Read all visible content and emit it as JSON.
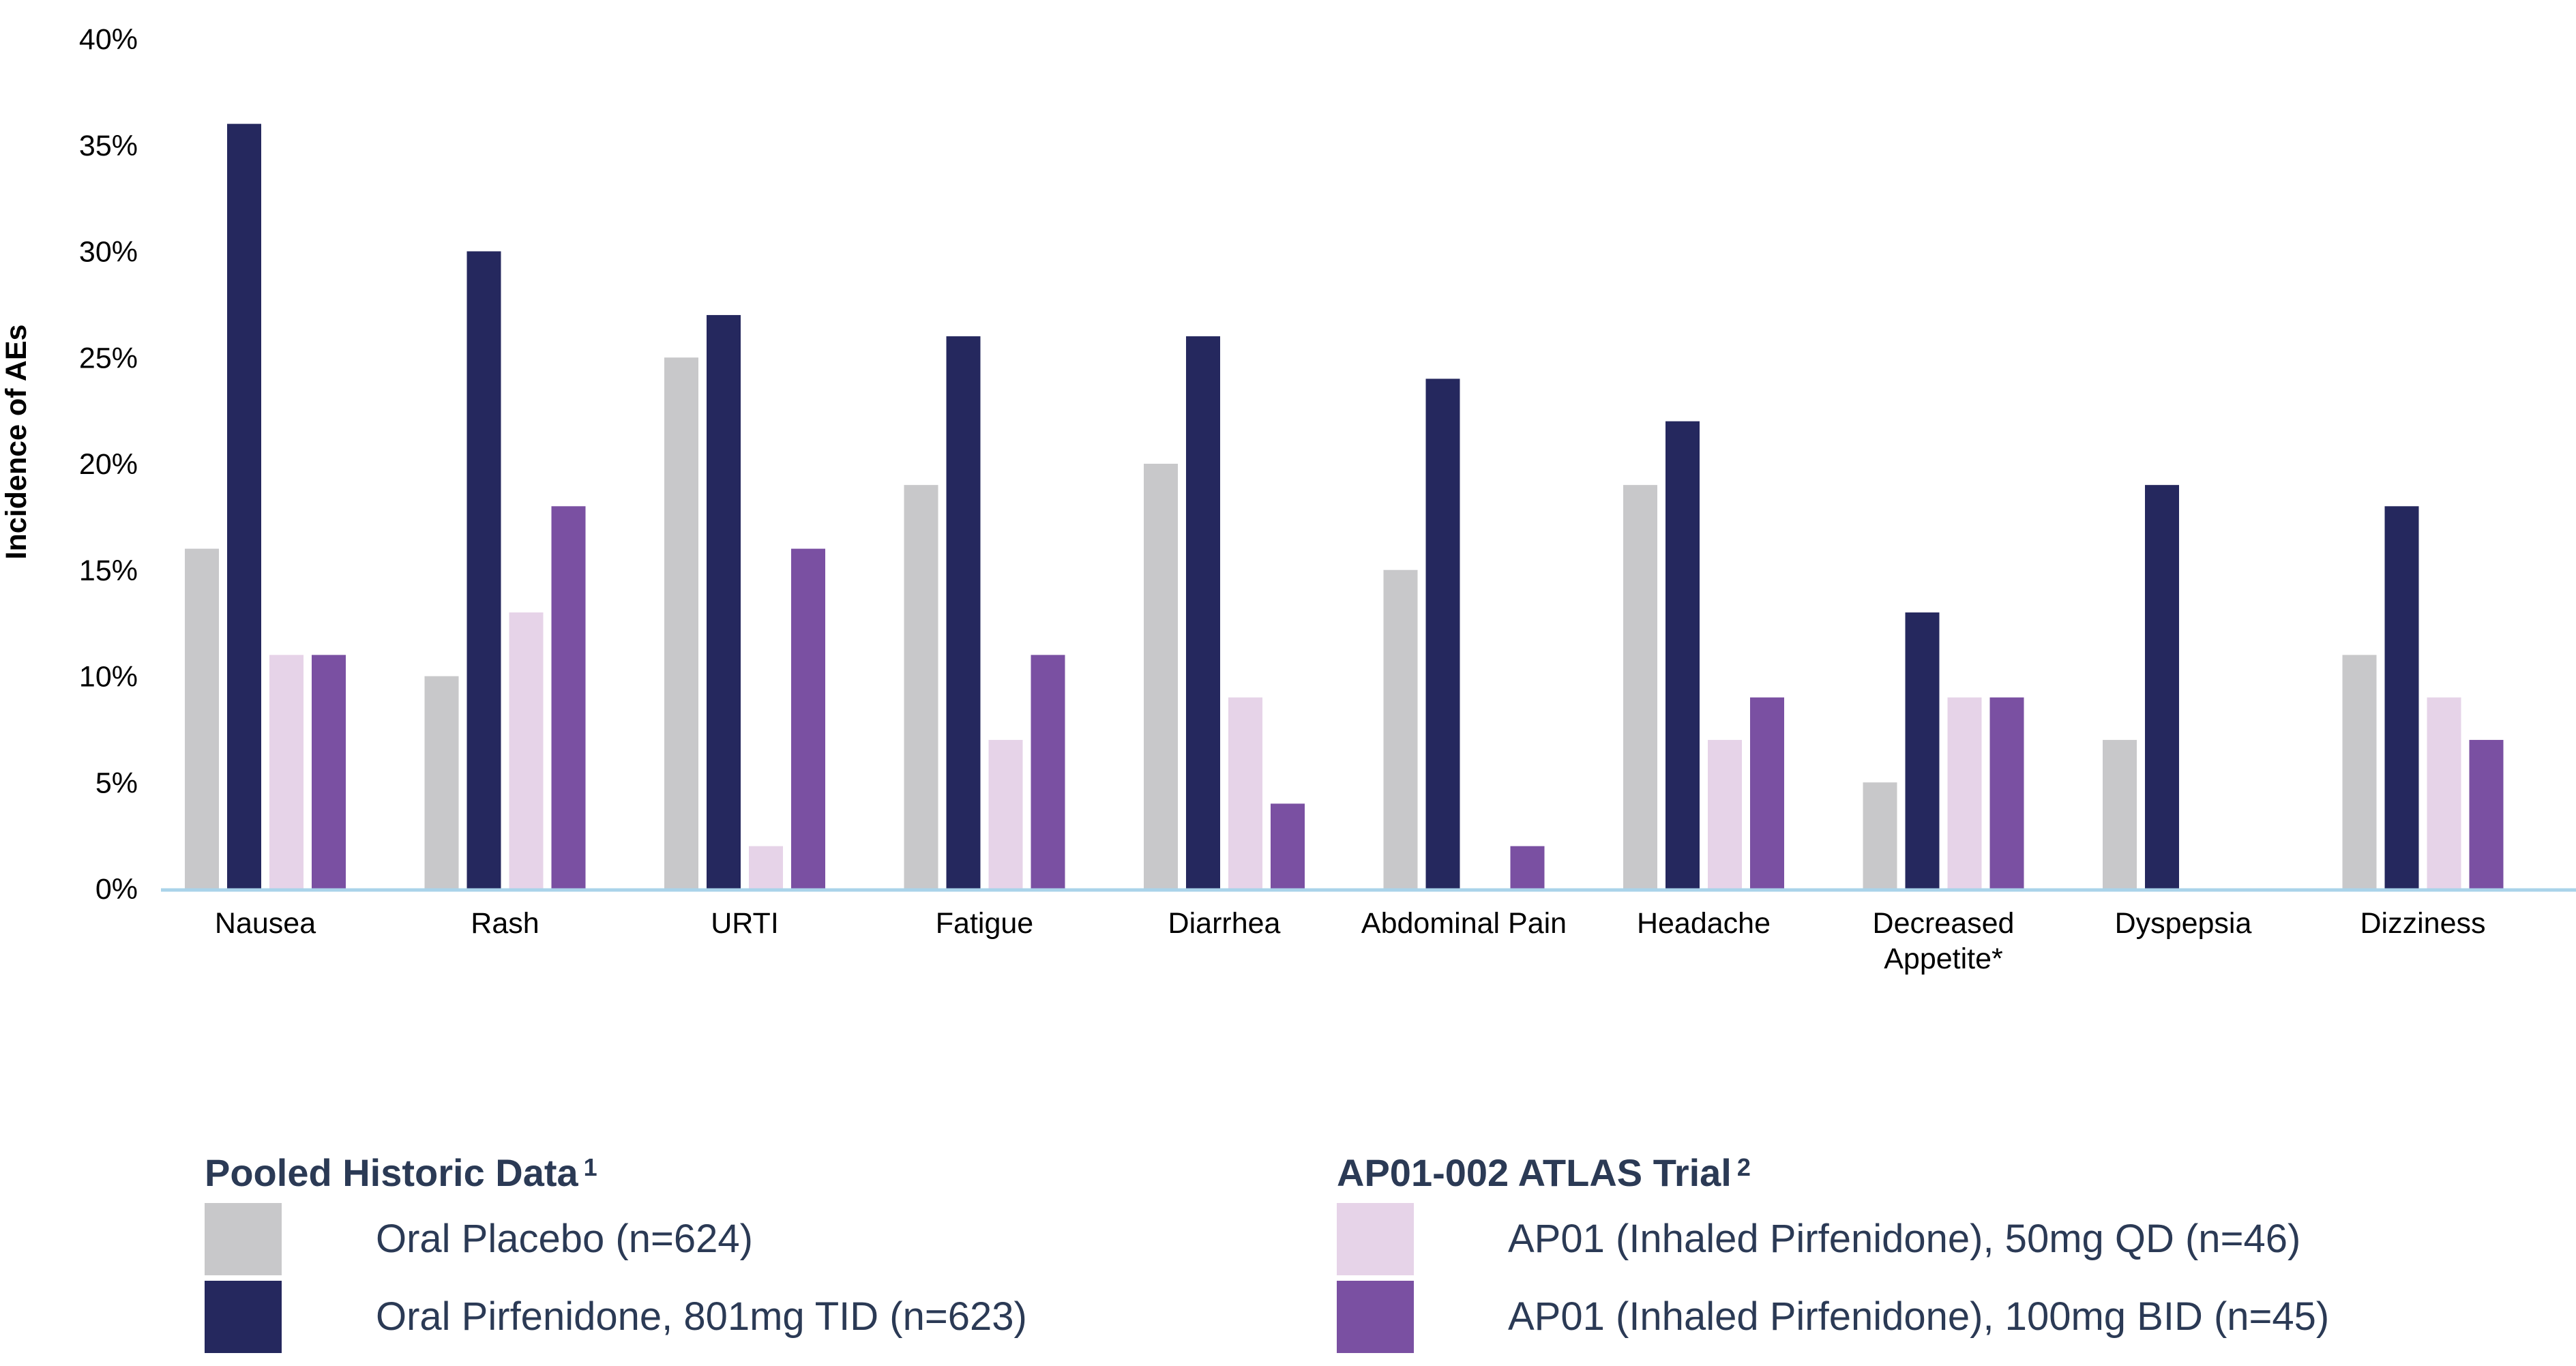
{
  "chart_data": {
    "type": "bar",
    "ylabel": "Incidence of AEs",
    "xlabel": "",
    "ylim": [
      0,
      40
    ],
    "y_ticks": [
      "0%",
      "5%",
      "10%",
      "15%",
      "20%",
      "25%",
      "30%",
      "35%",
      "40%"
    ],
    "grid": false,
    "categories": [
      [
        "Nausea"
      ],
      [
        "Rash"
      ],
      [
        "URTI"
      ],
      [
        "Fatigue"
      ],
      [
        "Diarrhea"
      ],
      [
        "Abdominal Pain"
      ],
      [
        "Headache"
      ],
      [
        "Decreased",
        "Appetite*"
      ],
      [
        "Dyspepsia"
      ],
      [
        "Dizziness"
      ]
    ],
    "series": [
      {
        "name": "Oral Placebo (n=624)",
        "color": "#c8c8ca",
        "values": [
          16,
          10,
          25,
          19,
          20,
          15,
          19,
          5,
          7,
          11
        ]
      },
      {
        "name": "Oral Pirfenidone, 801mg TID (n=623)",
        "color": "#25285e",
        "values": [
          36,
          30,
          27,
          26,
          26,
          24,
          22,
          13,
          19,
          18
        ]
      },
      {
        "name": "AP01 (Inhaled Pirfenidone), 50mg QD (n=46)",
        "color": "#e6d3e8",
        "values": [
          11,
          13,
          2,
          7,
          9,
          0,
          7,
          9,
          0,
          9
        ]
      },
      {
        "name": "AP01 (Inhaled Pirfenidone), 100mg BID  (n=45)",
        "color": "#7a50a2",
        "values": [
          11,
          18,
          16,
          11,
          4,
          2,
          9,
          9,
          0,
          7
        ]
      }
    ],
    "axis_color": "#a9d3ea"
  },
  "legend": {
    "group1": {
      "title": "Pooled Historic Data",
      "superscript": "1"
    },
    "group2": {
      "title": "AP01-002 ATLAS Trial",
      "superscript": "2"
    }
  }
}
